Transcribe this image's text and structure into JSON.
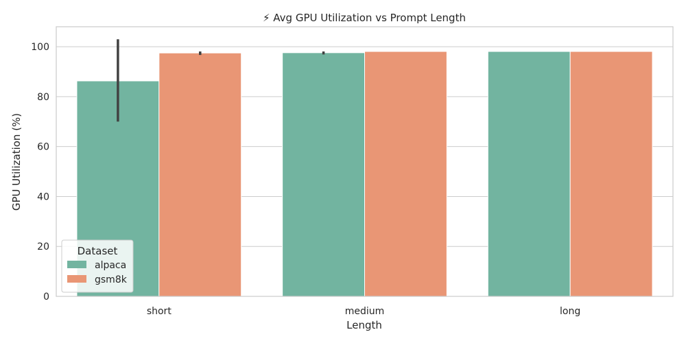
{
  "chart_data": {
    "type": "bar",
    "title": "⚡ Avg GPU Utilization vs Prompt Length",
    "xlabel": "Length",
    "ylabel": "GPU Utilization (%)",
    "categories": [
      "short",
      "medium",
      "long"
    ],
    "ylim": [
      0,
      108
    ],
    "yticks": [
      0,
      20,
      40,
      60,
      80,
      100
    ],
    "grid": true,
    "legend": {
      "title": "Dataset",
      "position": "lower-left"
    },
    "series": [
      {
        "name": "alpaca",
        "color": "#72b4a0",
        "values": [
          86.3,
          97.6,
          98.1
        ],
        "error_low": [
          70.0,
          96.9,
          98.1
        ],
        "error_high": [
          103.0,
          98.1,
          98.1
        ]
      },
      {
        "name": "gsm8k",
        "color": "#e99675",
        "values": [
          97.5,
          98.1,
          98.1
        ],
        "error_low": [
          96.7,
          98.1,
          98.1
        ],
        "error_high": [
          98.1,
          98.1,
          98.1
        ]
      }
    ]
  }
}
